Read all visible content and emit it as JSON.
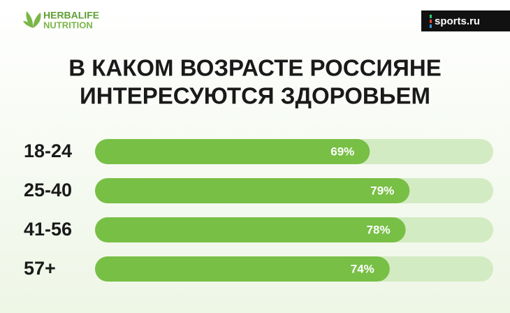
{
  "chart_data": {
    "type": "bar",
    "brand": {
      "name": "HERBALIFE",
      "sub": "NUTRITION"
    },
    "source": "sports.ru",
    "title": [
      "В КАКОМ ВОЗРАСТЕ РОССИЯНЕ",
      "ИНТЕРЕСУЮТСЯ ЗДОРОВЬЕМ"
    ],
    "categories": [
      "18-24",
      "25-40",
      "41-56",
      "57+"
    ],
    "values": [
      69,
      79,
      78,
      74
    ],
    "value_labels": [
      "69%",
      "79%",
      "78%",
      "74%"
    ],
    "color": "#78bf45",
    "track_color": "#d3ebc3",
    "xlim": [
      0,
      100
    ]
  }
}
